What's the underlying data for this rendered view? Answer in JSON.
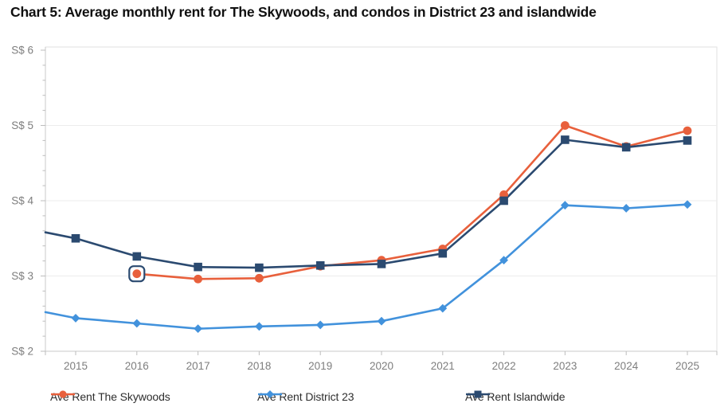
{
  "title": "Chart 5: Average monthly rent for The Skywoods, and condos in District 23 and islandwide",
  "colors": {
    "skywoods": "#E8603C",
    "district23": "#4292DC",
    "islandwide": "#2B4A70",
    "gridline": "#ECECEC",
    "plot_border": "#E2E2E2",
    "axis_line": "#C9C9C9",
    "tick": "#BDBDBD",
    "axis_label": "#7E7E7E",
    "highlight_ring": "#2B4A70",
    "background": "#FFFFFF",
    "title_text": "#101010"
  },
  "chart_data": {
    "type": "line",
    "title": "Chart 5: Average monthly rent for The Skywoods, and condos in District 23 and islandwide",
    "x": [
      2015,
      2016,
      2017,
      2018,
      2019,
      2020,
      2021,
      2022,
      2023,
      2024,
      2025
    ],
    "x_tick_labels": [
      "2015",
      "2016",
      "2017",
      "2018",
      "2019",
      "2020",
      "2021",
      "2022",
      "2023",
      "2024",
      "2025"
    ],
    "y_axis": {
      "currency_prefix": "S$",
      "ticks": [
        2,
        3,
        4,
        5,
        6
      ],
      "tick_labels": [
        "S$ 2",
        "S$ 3",
        "S$ 4",
        "S$ 5",
        "S$ 6"
      ],
      "range": [
        2,
        6
      ],
      "minor_tick_step": 0.2
    },
    "grid": "horizontal",
    "legend_position": "bottom",
    "series": [
      {
        "name": "Ave Rent The Skywoods",
        "color": "#E8603C",
        "marker": "circle",
        "values": [
          null,
          3.03,
          2.96,
          2.97,
          3.13,
          3.21,
          3.36,
          4.08,
          5.0,
          4.72,
          4.93
        ]
      },
      {
        "name": "Ave Rent District 23",
        "color": "#4292DC",
        "marker": "diamond",
        "edge_start_value": 2.52,
        "values": [
          2.44,
          2.37,
          2.3,
          2.33,
          2.35,
          2.4,
          2.57,
          3.21,
          3.94,
          3.9,
          3.95
        ]
      },
      {
        "name": "Ave Rent Islandwide",
        "color": "#2B4A70",
        "marker": "square",
        "edge_start_value": 3.58,
        "values": [
          3.5,
          3.26,
          3.12,
          3.11,
          3.14,
          3.16,
          3.3,
          4.0,
          4.81,
          4.71,
          4.8
        ]
      }
    ],
    "highlighted_point": {
      "series": "Ave Rent The Skywoods",
      "x": 2016,
      "value": 3.03
    }
  }
}
